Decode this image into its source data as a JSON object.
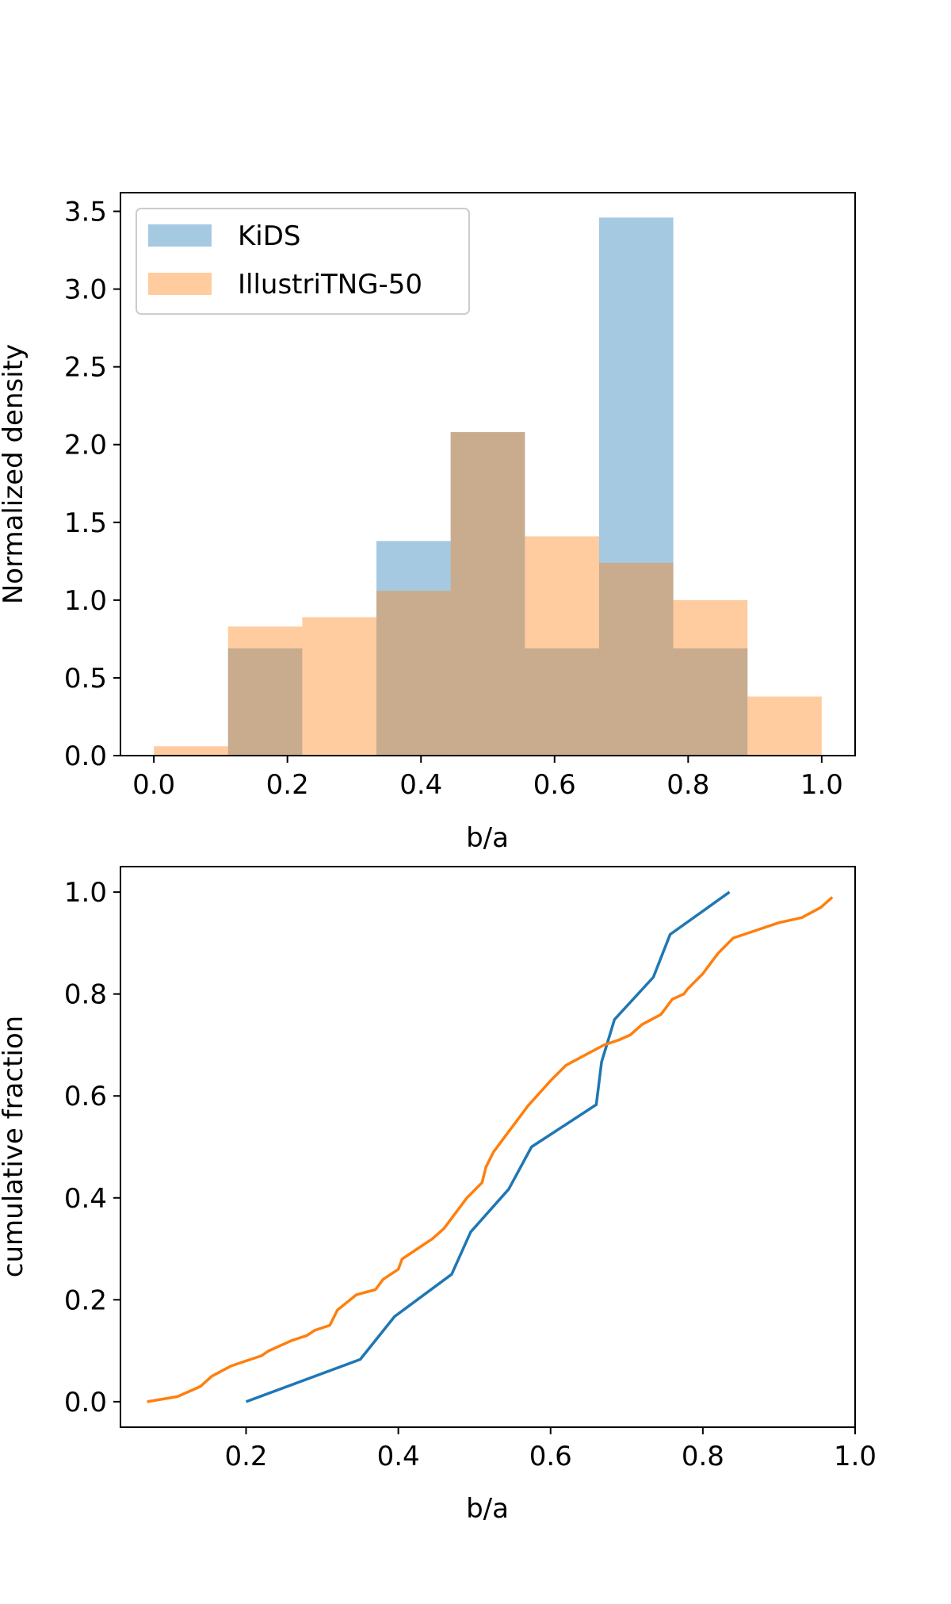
{
  "chart_data": [
    {
      "type": "bar",
      "subtype": "overlapping-histogram",
      "xlabel": "b/a",
      "ylabel": "Normalized density",
      "xlim": [
        -0.05,
        1.05
      ],
      "ylim": [
        0,
        3.62
      ],
      "xticks": [
        "0.0",
        "0.2",
        "0.4",
        "0.6",
        "0.8",
        "1.0"
      ],
      "yticks": [
        "0.0",
        "0.5",
        "1.0",
        "1.5",
        "2.0",
        "2.5",
        "3.0",
        "3.5"
      ],
      "legend_position": "top-left",
      "bin_edges": [
        0.0,
        0.1111,
        0.2222,
        0.3333,
        0.4444,
        0.5556,
        0.6667,
        0.7778,
        0.8889,
        1.0
      ],
      "series": [
        {
          "name": "KiDS",
          "color": "#1f77b4",
          "alpha": 0.4,
          "values": [
            0.0,
            0.69,
            0.0,
            1.38,
            2.08,
            0.69,
            3.46,
            0.69,
            0.0
          ]
        },
        {
          "name": "IllustriTNG-50",
          "color": "#ff7f0e",
          "alpha": 0.4,
          "values": [
            0.06,
            0.83,
            0.89,
            1.06,
            2.08,
            1.41,
            1.24,
            1.0,
            0.38
          ]
        }
      ]
    },
    {
      "type": "line",
      "subtype": "cumulative-distribution",
      "xlabel": "b/a",
      "ylabel": "cumulative fraction",
      "xlim": [
        0.035,
        1.0
      ],
      "ylim": [
        -0.05,
        1.05
      ],
      "xticks": [
        "0.2",
        "0.4",
        "0.6",
        "0.8",
        "1.0"
      ],
      "yticks": [
        "0.0",
        "0.2",
        "0.4",
        "0.6",
        "0.8",
        "1.0"
      ],
      "series": [
        {
          "name": "KiDS",
          "color": "#1f77b4",
          "x": [
            0.2,
            0.35,
            0.395,
            0.47,
            0.495,
            0.545,
            0.575,
            0.66,
            0.667,
            0.684,
            0.735,
            0.757,
            0.835
          ],
          "y": [
            0.0,
            0.083,
            0.167,
            0.25,
            0.333,
            0.417,
            0.5,
            0.583,
            0.667,
            0.75,
            0.833,
            0.917,
            1.0
          ]
        },
        {
          "name": "IllustriTNG-50",
          "color": "#ff7f0e",
          "x": [
            0.07,
            0.11,
            0.14,
            0.155,
            0.18,
            0.2,
            0.22,
            0.23,
            0.26,
            0.28,
            0.29,
            0.31,
            0.32,
            0.345,
            0.37,
            0.38,
            0.4,
            0.405,
            0.425,
            0.445,
            0.46,
            0.475,
            0.49,
            0.51,
            0.515,
            0.525,
            0.54,
            0.555,
            0.57,
            0.6,
            0.62,
            0.645,
            0.67,
            0.69,
            0.705,
            0.72,
            0.745,
            0.76,
            0.775,
            0.78,
            0.8,
            0.81,
            0.82,
            0.84,
            0.86,
            0.88,
            0.9,
            0.93,
            0.955,
            0.97
          ],
          "y": [
            0.0,
            0.01,
            0.03,
            0.05,
            0.07,
            0.08,
            0.09,
            0.1,
            0.12,
            0.13,
            0.14,
            0.15,
            0.18,
            0.21,
            0.22,
            0.24,
            0.26,
            0.28,
            0.3,
            0.32,
            0.34,
            0.37,
            0.4,
            0.43,
            0.46,
            0.49,
            0.52,
            0.55,
            0.58,
            0.63,
            0.66,
            0.68,
            0.7,
            0.71,
            0.72,
            0.74,
            0.76,
            0.79,
            0.8,
            0.81,
            0.84,
            0.86,
            0.88,
            0.91,
            0.92,
            0.93,
            0.94,
            0.95,
            0.97,
            0.99
          ]
        }
      ]
    }
  ]
}
